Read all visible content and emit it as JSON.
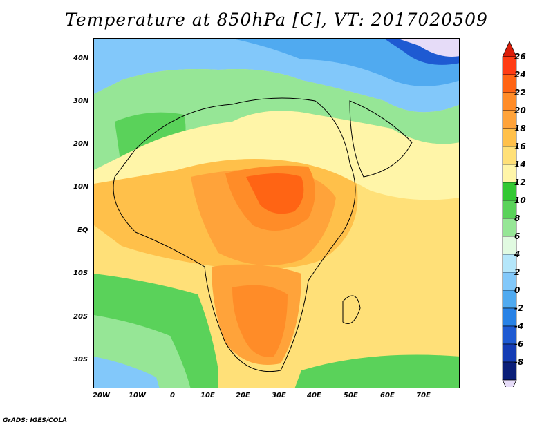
{
  "title": "Temperature at 850hPa [C], VT: 2017020509",
  "credit": "GrADS: IGES/COLA",
  "map": {
    "lat_labels": [
      "40N",
      "30N",
      "20N",
      "10N",
      "EQ",
      "10S",
      "20S",
      "30S"
    ],
    "lon_labels": [
      "20W",
      "10W",
      "0",
      "10E",
      "20E",
      "30E",
      "40E",
      "50E",
      "60E",
      "70E"
    ]
  },
  "colorbar": {
    "labels": [
      "26",
      "24",
      "22",
      "20",
      "18",
      "16",
      "14",
      "12",
      "10",
      "8",
      "6",
      "4",
      "2",
      "0",
      "-2",
      "-4",
      "-6",
      "-8"
    ],
    "colors": [
      "#ff3c14",
      "#ff6414",
      "#ff8c28",
      "#ffa33a",
      "#ffc04a",
      "#ffe078",
      "#fff5a8",
      "#32c832",
      "#5ad25a",
      "#96e696",
      "#e1fae1",
      "#b4e6fa",
      "#82c8fa",
      "#50aaf0",
      "#2882e6",
      "#1e5ad2",
      "#143cb4",
      "#0a1e78"
    ],
    "top_arrow": "#dc1e0a",
    "bottom_arrow": "#e6dcf8"
  }
}
